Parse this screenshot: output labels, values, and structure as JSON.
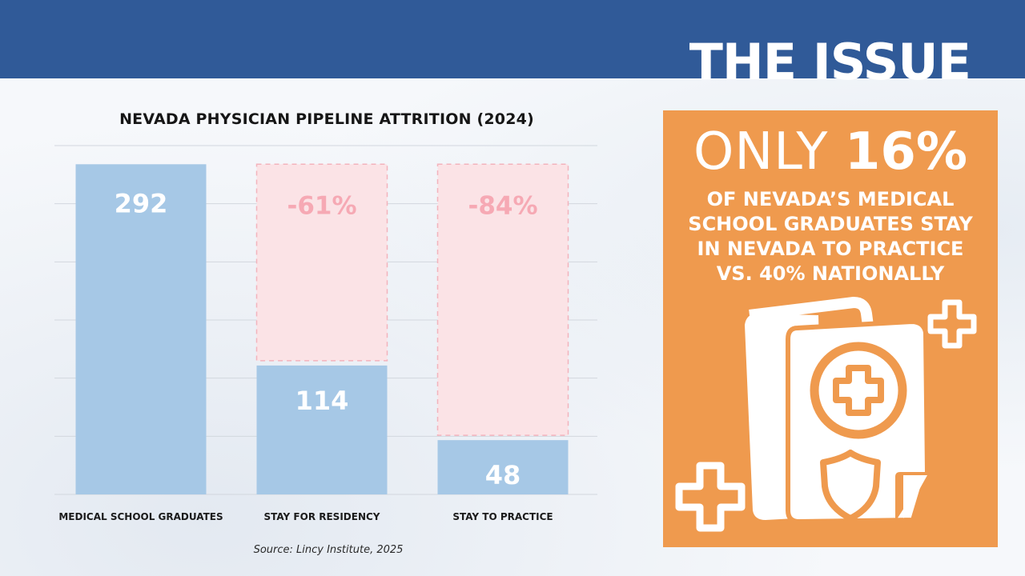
{
  "header": {
    "title": "THE ISSUE"
  },
  "chart_data": {
    "type": "bar",
    "title": "NEVADA PHYSICIAN PIPELINE ATTRITION (2024)",
    "categories": [
      "MEDICAL SCHOOL GRADUATES",
      "STAY FOR RESIDENCY",
      "STAY TO PRACTICE"
    ],
    "values": [
      292,
      114,
      48
    ],
    "value_labels": [
      "292",
      "114",
      "48"
    ],
    "loss_labels": [
      "",
      "-61%",
      "-84%"
    ],
    "ylim": [
      0,
      300
    ],
    "grid": true,
    "colors": {
      "bar": "#a6c8e6",
      "loss": "#fbe3e6",
      "loss_border": "#f3b3bc",
      "loss_text": "#f6a9b4"
    },
    "source": "Source: Lincy Institute, 2025"
  },
  "callout": {
    "prefix": "ONLY",
    "highlight": "16%",
    "lines": [
      "OF NEVADA’S MEDICAL",
      "SCHOOL GRADUATES STAY",
      "IN NEVADA TO PRACTICE",
      "VS. 40% NATIONALLY"
    ],
    "background": "#ef9a4e"
  },
  "icons": [
    "medical-document-icon",
    "medical-cross-icon",
    "shield-icon",
    "plus-icon"
  ]
}
